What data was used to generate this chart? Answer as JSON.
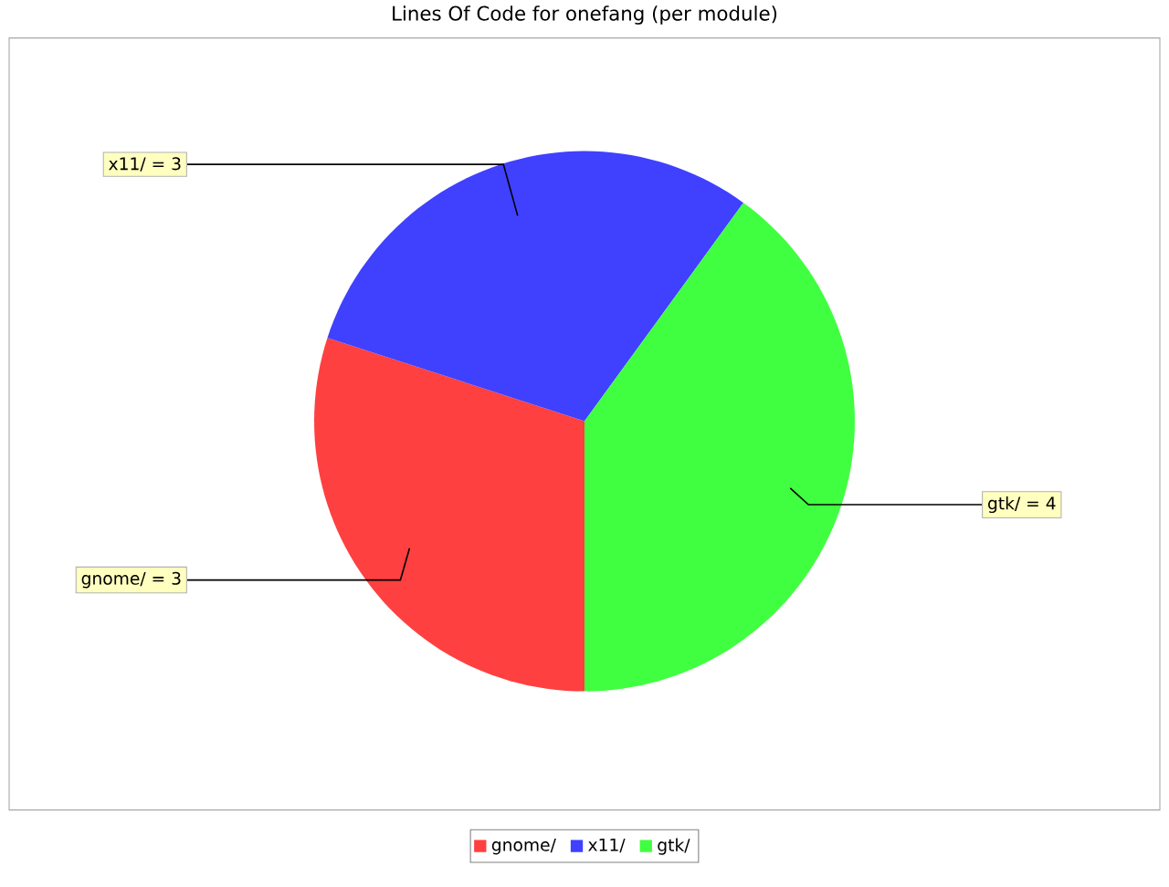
{
  "chart_data": {
    "type": "pie",
    "title": "Lines Of Code for onefang (per module)",
    "categories": [
      "gnome/",
      "x11/",
      "gtk/"
    ],
    "values": [
      3,
      3,
      4
    ],
    "colors": [
      "#ff4040",
      "#4040ff",
      "#40ff40"
    ],
    "value_labels": [
      "gnome/ = 3",
      "x11/ = 3",
      "gtk/ = 4"
    ],
    "legend": "bottom"
  }
}
